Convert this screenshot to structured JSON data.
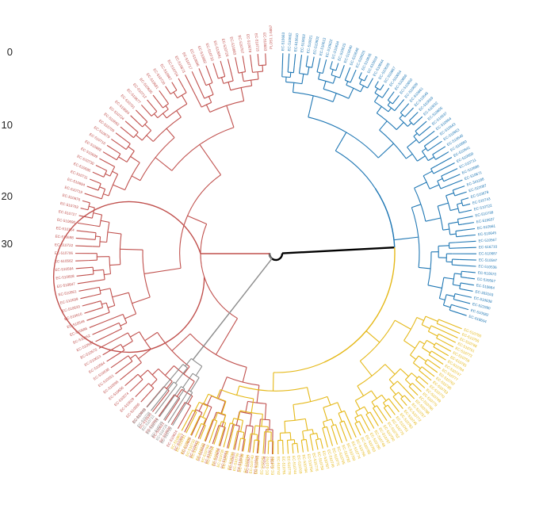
{
  "scale": {
    "ticks": [
      "0",
      "10",
      "20",
      "30"
    ]
  },
  "colors": {
    "red": "#c0504d",
    "blue": "#1f77b4",
    "yellow": "#e5b817",
    "gray": "#8c8c8c",
    "root": "#000000"
  },
  "tree": {
    "top_label": "PLOS1 1-5857",
    "red_labels": [
      "C-4597",
      "C-5198",
      "EC-510588",
      "EC-510627",
      "EC-510536",
      "EC-510631",
      "EC-510601",
      "EC-510658",
      "EC-510579",
      "EC-510668",
      "EC-510642",
      "EC-510605",
      "EC-510657",
      "EC-510624",
      "EC-510600",
      "EC-510621",
      "EC-510566",
      "EC-510590",
      "EC-510609",
      "EC-510555",
      "EC-510629",
      "EC-510574",
      "EC-510656",
      "EC-510595",
      "EC-510551",
      "EC-510638",
      "EC-510564",
      "EC-510613",
      "EC-510570",
      "EC-510597",
      "EC-510652",
      "EC-510586",
      "EC-510549",
      "EC-510616",
      "EC-510633",
      "EC-510599",
      "EC-510561",
      "EC-510647",
      "EC-510608",
      "EC-510584",
      "EC-510562",
      "EC-510706",
      "EC-510722",
      "EC-510698",
      "EC-510714",
      "EC-510690",
      "EC-510727",
      "EC-510703",
      "EC-510676",
      "EC-510719",
      "EC-510694",
      "EC-510711",
      "EC-510685",
      "EC-510730",
      "EC-510699",
      "EC-510688",
      "EC-510716",
      "EC-510679",
      "EC-510709",
      "EC-510692",
      "EC-510724",
      "EC-510684",
      "EC-510701",
      "EC-510677",
      "EC-510712",
      "EC-510695",
      "EC-510681",
      "EC-510720",
      "EC-510687",
      "EC-510704",
      "EC-510673",
      "EC-510717",
      "EC-510696",
      "EC-510682",
      "EC-510710",
      "EC-510691",
      "EC-510726",
      "EC-510683",
      "EC-510707",
      "EC-510678",
      "EC-510715",
      "EC-510693"
    ],
    "blue_labels": [
      "EC-510663",
      "EC-510662",
      "EC-510610",
      "EC-510602",
      "EC-510621",
      "EC-510602",
      "EC-510613",
      "EC-510622",
      "EC-510634",
      "EC-510615",
      "EC-510640",
      "EC-510648",
      "EC-510626",
      "EC-510635",
      "EC-510619",
      "EC-510644",
      "EC-510628",
      "EC-510667",
      "EC-510654",
      "EC-510666",
      "EC-510650",
      "EC-510639",
      "EC-510661",
      "EC-510645",
      "EC-510669",
      "EC-510632",
      "EC-510655",
      "EC-510637",
      "EC-510664",
      "EC-510643",
      "EC-510653",
      "EC-510646",
      "EC-510660",
      "EC-510641",
      "EC-510659",
      "EC-510711",
      "EC-510680",
      "EC-510671",
      "EC-341188",
      "EC-522087",
      "EC-510678",
      "EC-510743",
      "EC-510722",
      "EC-510738",
      "EC-510637",
      "EC-510561",
      "EC-510645",
      "EC-510567",
      "EC-516710",
      "EC-510687",
      "EC-510597",
      "EC-510536",
      "EC-510570",
      "EC-520567",
      "EC-510664",
      "EC-333163",
      "EC-510638",
      "EC-522990",
      "EC-510582",
      "EC-518604"
    ],
    "yellow_labels": [
      "EC-510760",
      "EC-510755",
      "EC-510768",
      "EC-510751",
      "EC-510773",
      "EC-510759",
      "EC-510781",
      "EC-510764",
      "EC-510747",
      "EC-510777",
      "EC-510762",
      "EC-510785",
      "EC-510753",
      "EC-510770",
      "EC-510749",
      "EC-510779",
      "EC-510766",
      "EC-510788",
      "EC-510757",
      "EC-510772",
      "EC-510745",
      "EC-510783",
      "EC-510761",
      "EC-510775",
      "EC-510752",
      "EC-510790",
      "EC-510767",
      "EC-510748",
      "EC-510780",
      "EC-510763",
      "EC-510786",
      "EC-510756",
      "EC-510774",
      "EC-510750",
      "EC-510782",
      "EC-510765",
      "EC-510771",
      "EC-510746",
      "EC-510787",
      "EC-510758",
      "EC-510776",
      "EC-510754",
      "EC-510784",
      "EC-510769",
      "EC-510744",
      "EC-510778",
      "EC-510791",
      "EC-510742",
      "EC-510789",
      "EC-510792",
      "EC-510741",
      "EC-510793",
      "EC-510740",
      "EC-510794",
      "EC-510739",
      "EC-510795",
      "EC-510736",
      "EC-510796",
      "EC-510735",
      "EC-510797",
      "EC-510734",
      "EC-510798",
      "EC-510733",
      "EC-510799",
      "EC-510732",
      "EC-510800",
      "EC-510731",
      "EC-510801"
    ],
    "gray_labels": [
      "EC-510718",
      "EC-510725",
      "EC-510729",
      "EC-510721",
      "EC-510713",
      "EC-510728",
      "EC-510705"
    ]
  }
}
